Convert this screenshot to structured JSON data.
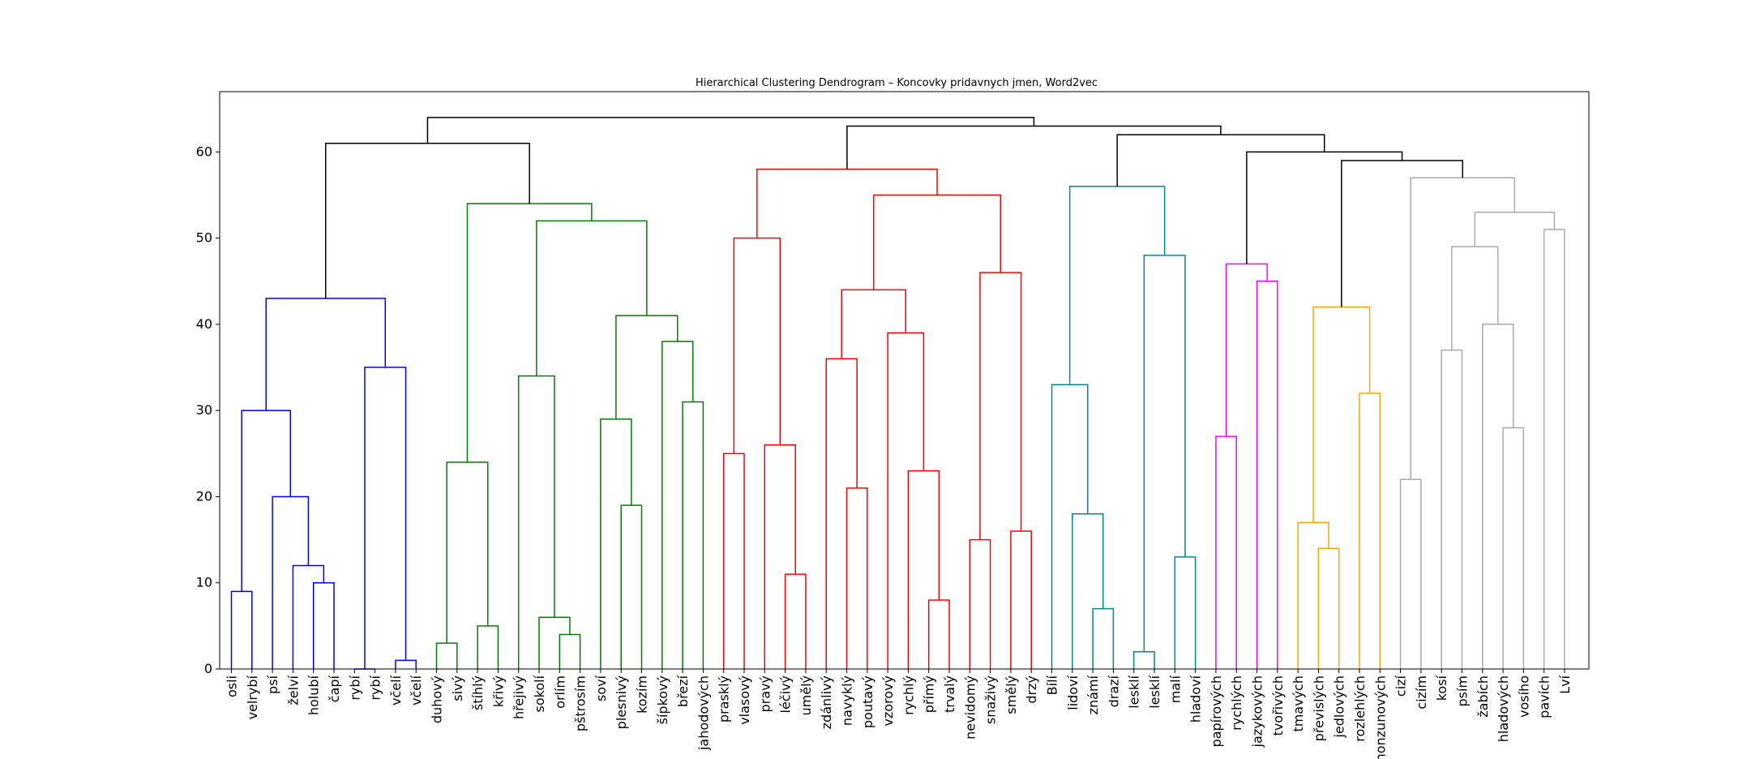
{
  "chart_data": {
    "type": "dendrogram",
    "title": "Hierarchical Clustering Dendrogram – Koncovky pridavnych jmen, Word2vec",
    "xlabel": "",
    "ylabel": "",
    "ylim": [
      0,
      67
    ],
    "yticks": [
      0,
      10,
      20,
      30,
      40,
      50,
      60
    ],
    "grid": false,
    "colors": {
      "blue": "#0000ff",
      "green": "#008000",
      "red": "#ff0000",
      "teal": "#008b8b",
      "magenta": "#ff00ff",
      "orange": "#ffa500",
      "gray": "#aaaaaa",
      "black": "#000000"
    },
    "leaves": [
      "osli",
      "velrybí",
      "psí",
      "želví",
      "holubí",
      "čapí",
      "rybí",
      "rybí",
      "včelí",
      "včelí",
      "duhový",
      "sivý",
      "štíhlý",
      "křivý",
      "hřejivý",
      "sokolí",
      "orlím",
      "pštrosím",
      "soví",
      "plesnivý",
      "kozím",
      "šípkový",
      "březí",
      "jahodových",
      "prasklý",
      "vlasový",
      "pravý",
      "léčivý",
      "umělý",
      "zdánlivý",
      "navyklý",
      "poutavý",
      "vzorový",
      "rychlý",
      "přímý",
      "trvalý",
      "nevidomý",
      "snaživý",
      "smělý",
      "drzý",
      "Bílí",
      "lidoví",
      "známí",
      "drazí",
      "lesklí",
      "lesklí",
      "malí",
      "hladoví",
      "papírových",
      "rychlých",
      "jazykových",
      "tvořivých",
      "tmavých",
      "převislých",
      "jedlových",
      "rozlehlých",
      "monzunových",
      "cizí",
      "cizím",
      "kosí",
      "psím",
      "žabích",
      "hladových",
      "vosího",
      "pavích",
      "Lví"
    ],
    "merges": [
      {
        "a": "L0",
        "b": "L1",
        "h": 9,
        "color": "blue"
      },
      {
        "a": "L4",
        "b": "L5",
        "h": 10,
        "color": "blue"
      },
      {
        "a": "L3",
        "b": "M1",
        "h": 12,
        "color": "blue"
      },
      {
        "a": "L2",
        "b": "M2",
        "h": 20,
        "color": "blue"
      },
      {
        "a": "M0",
        "b": "M3",
        "h": 30,
        "color": "blue"
      },
      {
        "a": "L6",
        "b": "L7",
        "h": 0,
        "color": "blue"
      },
      {
        "a": "L8",
        "b": "L9",
        "h": 1,
        "color": "blue"
      },
      {
        "a": "M5",
        "b": "M6",
        "h": 35,
        "color": "blue"
      },
      {
        "a": "M4",
        "b": "M7",
        "h": 43,
        "color": "blue"
      },
      {
        "a": "L10",
        "b": "L11",
        "h": 3,
        "color": "green"
      },
      {
        "a": "L12",
        "b": "L13",
        "h": 5,
        "color": "green"
      },
      {
        "a": "M9",
        "b": "M10",
        "h": 24,
        "color": "green"
      },
      {
        "a": "L16",
        "b": "L17",
        "h": 4,
        "color": "green"
      },
      {
        "a": "L15",
        "b": "M12",
        "h": 6,
        "color": "green"
      },
      {
        "a": "L14",
        "b": "M13",
        "h": 34,
        "color": "green"
      },
      {
        "a": "L19",
        "b": "L20",
        "h": 19,
        "color": "green"
      },
      {
        "a": "L18",
        "b": "M15",
        "h": 29,
        "color": "green"
      },
      {
        "a": "L22",
        "b": "L23",
        "h": 31,
        "color": "green"
      },
      {
        "a": "L21",
        "b": "M17",
        "h": 38,
        "color": "green"
      },
      {
        "a": "M16",
        "b": "M18",
        "h": 41,
        "color": "green"
      },
      {
        "a": "M14",
        "b": "M19",
        "h": 52,
        "color": "green"
      },
      {
        "a": "M11",
        "b": "M20",
        "h": 54,
        "color": "green"
      },
      {
        "a": "M8",
        "b": "M21",
        "h": 61,
        "color": "black"
      },
      {
        "a": "L24",
        "b": "L25",
        "h": 25,
        "color": "red"
      },
      {
        "a": "L27",
        "b": "L28",
        "h": 11,
        "color": "red"
      },
      {
        "a": "L26",
        "b": "M24",
        "h": 26,
        "color": "red"
      },
      {
        "a": "M23",
        "b": "M25",
        "h": 50,
        "color": "red"
      },
      {
        "a": "L30",
        "b": "L31",
        "h": 21,
        "color": "red"
      },
      {
        "a": "L29",
        "b": "M27",
        "h": 36,
        "color": "red"
      },
      {
        "a": "L34",
        "b": "L35",
        "h": 8,
        "color": "red"
      },
      {
        "a": "L33",
        "b": "M29",
        "h": 23,
        "color": "red"
      },
      {
        "a": "L32",
        "b": "M30",
        "h": 39,
        "color": "red"
      },
      {
        "a": "M28",
        "b": "M31",
        "h": 44,
        "color": "red"
      },
      {
        "a": "L36",
        "b": "L37",
        "h": 15,
        "color": "red"
      },
      {
        "a": "L38",
        "b": "L39",
        "h": 16,
        "color": "red"
      },
      {
        "a": "M33",
        "b": "M34",
        "h": 46,
        "color": "red"
      },
      {
        "a": "M32",
        "b": "M35",
        "h": 55,
        "color": "red"
      },
      {
        "a": "M26",
        "b": "M36",
        "h": 58,
        "color": "red"
      },
      {
        "a": "L42",
        "b": "L43",
        "h": 7,
        "color": "teal"
      },
      {
        "a": "L41",
        "b": "M38",
        "h": 18,
        "color": "teal"
      },
      {
        "a": "L40",
        "b": "M39",
        "h": 33,
        "color": "teal"
      },
      {
        "a": "L44",
        "b": "L45",
        "h": 2,
        "color": "teal"
      },
      {
        "a": "L46",
        "b": "L47",
        "h": 13,
        "color": "teal"
      },
      {
        "a": "M41",
        "b": "M42",
        "h": 48,
        "color": "teal"
      },
      {
        "a": "M40",
        "b": "M43",
        "h": 56,
        "color": "teal"
      },
      {
        "a": "L48",
        "b": "L49",
        "h": 27,
        "color": "magenta"
      },
      {
        "a": "L50",
        "b": "L51",
        "h": 45,
        "color": "magenta"
      },
      {
        "a": "M45",
        "b": "M46",
        "h": 47,
        "color": "magenta"
      },
      {
        "a": "L53",
        "b": "L54",
        "h": 14,
        "color": "orange"
      },
      {
        "a": "L52",
        "b": "M48",
        "h": 17,
        "color": "orange"
      },
      {
        "a": "L55",
        "b": "L56",
        "h": 32,
        "color": "orange"
      },
      {
        "a": "M49",
        "b": "M50",
        "h": 42,
        "color": "orange"
      },
      {
        "a": "L57",
        "b": "L58",
        "h": 22,
        "color": "gray"
      },
      {
        "a": "L59",
        "b": "L60",
        "h": 37,
        "color": "gray"
      },
      {
        "a": "L62",
        "b": "L63",
        "h": 28,
        "color": "gray"
      },
      {
        "a": "L61",
        "b": "M54",
        "h": 40,
        "color": "gray"
      },
      {
        "a": "M53",
        "b": "M55",
        "h": 49,
        "color": "gray"
      },
      {
        "a": "L64",
        "b": "L65",
        "h": 51,
        "color": "gray"
      },
      {
        "a": "M56",
        "b": "M57",
        "h": 53,
        "color": "gray"
      },
      {
        "a": "M52",
        "b": "M58",
        "h": 57,
        "color": "gray"
      },
      {
        "a": "M51",
        "b": "M59",
        "h": 59,
        "color": "black"
      },
      {
        "a": "M47",
        "b": "M60",
        "h": 60,
        "color": "black"
      },
      {
        "a": "M44",
        "b": "M61",
        "h": 62,
        "color": "black"
      },
      {
        "a": "M37",
        "b": "M62",
        "h": 63,
        "color": "black"
      },
      {
        "a": "M22",
        "b": "M63",
        "h": 64,
        "color": "black"
      }
    ]
  }
}
